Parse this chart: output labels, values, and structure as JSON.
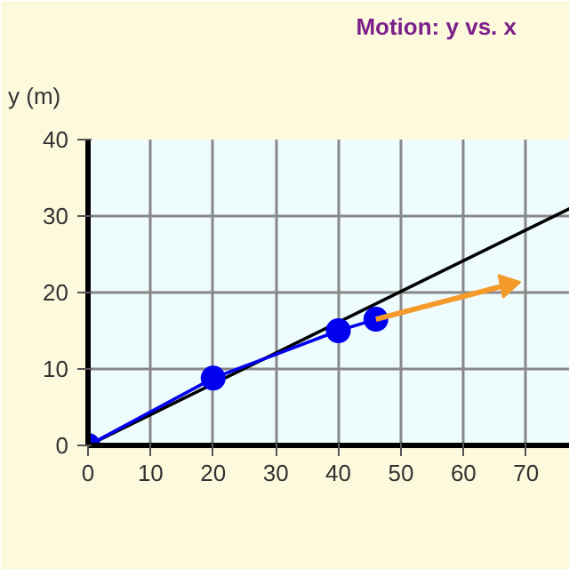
{
  "chart_data": {
    "type": "line",
    "title": "Motion: y vs. x",
    "ylabel": "y (m)",
    "xlim": [
      0,
      77
    ],
    "ylim": [
      0,
      40
    ],
    "xticks": [
      0,
      10,
      20,
      30,
      40,
      50,
      60,
      70
    ],
    "yticks": [
      0,
      10,
      20,
      30,
      40
    ],
    "grid": true,
    "series": [
      {
        "color": "#000000",
        "x": [
          0,
          77
        ],
        "values": [
          0,
          31
        ],
        "marker": "none"
      },
      {
        "color": "#0000ee",
        "x": [
          0,
          20,
          40,
          46
        ],
        "values": [
          0,
          8.8,
          15,
          16.5
        ],
        "marker": "circle"
      },
      {
        "color": "#f39a2b",
        "x": [
          46,
          67
        ],
        "values": [
          16.5,
          21
        ],
        "marker": "triangle"
      }
    ]
  }
}
